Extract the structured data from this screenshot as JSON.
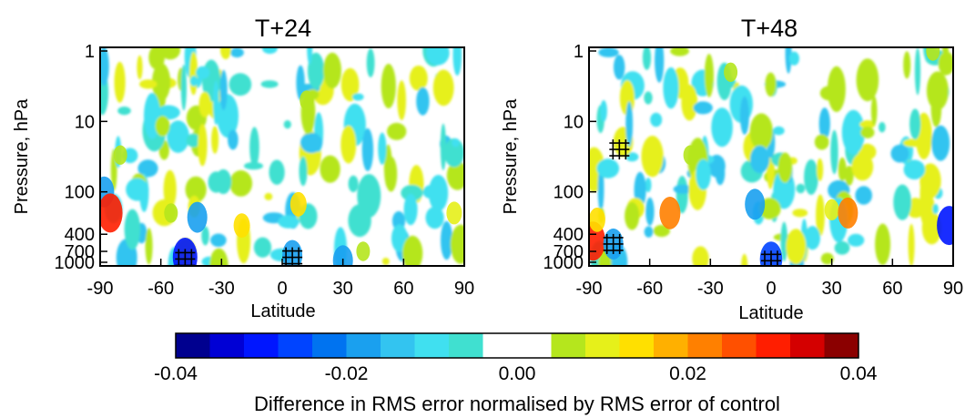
{
  "chart_data": [
    {
      "type": "heatmap",
      "title": "T+24",
      "xlabel": "Latitude",
      "ylabel": "Pressure, hPa",
      "xlim": [
        -90,
        90
      ],
      "x_ticks": [
        "-90",
        "-60",
        "-30",
        "0",
        "30",
        "60",
        "90"
      ],
      "y_scale": "log",
      "y_ticks": [
        "1",
        "10",
        "100",
        "400",
        "700",
        "1000"
      ],
      "blobs": [
        {
          "lat": -88,
          "p": 100,
          "value": -0.02
        },
        {
          "lat": -85,
          "p": 200,
          "value": 0.03
        },
        {
          "lat": -80,
          "p": 30,
          "value": 0.006
        },
        {
          "lat": -55,
          "p": 200,
          "value": 0.006
        },
        {
          "lat": -42,
          "p": 230,
          "value": -0.02
        },
        {
          "lat": -20,
          "p": 300,
          "value": 0.012
        },
        {
          "lat": 8,
          "p": 150,
          "value": 0.012
        },
        {
          "lat": 12,
          "p": 5,
          "value": 0.006
        },
        {
          "lat": 40,
          "p": 700,
          "value": 0.006
        },
        {
          "lat": 85,
          "p": 200,
          "value": 0.01
        },
        {
          "lat": -48,
          "p": 850,
          "value": -0.03
        },
        {
          "lat": 5,
          "p": 800,
          "value": -0.02
        },
        {
          "lat": 30,
          "p": 950,
          "value": -0.02
        }
      ],
      "hatched": [
        {
          "lat": -48,
          "p": 900
        },
        {
          "lat": 5,
          "p": 850
        }
      ]
    },
    {
      "type": "heatmap",
      "title": "T+48",
      "xlabel": "Latitude",
      "ylabel": "Pressure, hPa",
      "xlim": [
        -90,
        90
      ],
      "x_ticks": [
        "-90",
        "-60",
        "-30",
        "0",
        "30",
        "60",
        "90"
      ],
      "y_scale": "log",
      "y_ticks": [
        "1",
        "10",
        "100",
        "400",
        "700",
        "1000"
      ],
      "blobs": [
        {
          "lat": -88,
          "p": 500,
          "value": 0.03
        },
        {
          "lat": -86,
          "p": 250,
          "value": 0.012
        },
        {
          "lat": -50,
          "p": 200,
          "value": 0.022
        },
        {
          "lat": -40,
          "p": 30,
          "value": 0.006
        },
        {
          "lat": -20,
          "p": 2,
          "value": 0.006
        },
        {
          "lat": -8,
          "p": 150,
          "value": -0.02
        },
        {
          "lat": 30,
          "p": 180,
          "value": 0.008
        },
        {
          "lat": 38,
          "p": 200,
          "value": 0.02
        },
        {
          "lat": 88,
          "p": 300,
          "value": -0.03
        },
        {
          "lat": 80,
          "p": 1,
          "value": 0.006
        },
        {
          "lat": 0,
          "p": 900,
          "value": -0.025
        },
        {
          "lat": -78,
          "p": 550,
          "value": -0.02
        }
      ],
      "hatched": [
        {
          "lat": -75,
          "p": 25
        },
        {
          "lat": -78,
          "p": 550
        },
        {
          "lat": 0,
          "p": 950
        }
      ]
    }
  ],
  "colorbar": {
    "ticks": [
      "-0.04",
      "-0.02",
      "0.00",
      "0.02",
      "0.04"
    ],
    "range": [
      -0.04,
      0.04
    ],
    "label": "Difference in RMS error normalised by RMS error of control",
    "colors": [
      "#00008f",
      "#0000d5",
      "#0016ff",
      "#0044ff",
      "#0073f0",
      "#1aa0ef",
      "#33c4f0",
      "#40e0f0",
      "#40e0d0",
      "#ffffff",
      "#ffffff",
      "#b5e61d",
      "#e6f01a",
      "#ffe000",
      "#ffb000",
      "#ff8000",
      "#ff5000",
      "#ff1e00",
      "#d40000",
      "#8b0000"
    ]
  }
}
